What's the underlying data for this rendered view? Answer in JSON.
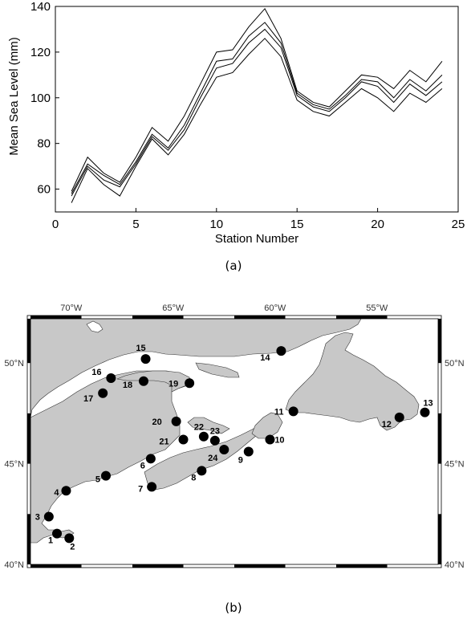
{
  "panels": {
    "a": "(a)",
    "b": "(b)"
  },
  "chart_data": {
    "type": "line",
    "xlabel": "Station Number",
    "ylabel": "Mean Sea Level (mm)",
    "xlim": [
      0,
      25
    ],
    "ylim": [
      50,
      140
    ],
    "xticks": [
      0,
      5,
      10,
      15,
      20,
      25
    ],
    "yticks": [
      60,
      80,
      100,
      120,
      140
    ],
    "grid": false,
    "x": [
      1,
      2,
      3,
      4,
      5,
      6,
      7,
      8,
      9,
      10,
      11,
      12,
      13,
      14,
      15,
      16,
      17,
      18,
      19,
      20,
      21,
      22,
      23,
      24
    ],
    "series": [
      {
        "values": [
          59,
          74,
          67,
          63,
          74,
          87,
          81,
          92,
          106,
          120,
          121,
          131,
          139,
          126,
          103,
          98,
          96,
          103,
          110,
          109,
          104,
          112,
          107,
          116
        ]
      },
      {
        "values": [
          58,
          71,
          66,
          62,
          72,
          84,
          78,
          88,
          102,
          116,
          117,
          127,
          133,
          124,
          102,
          97,
          95,
          101,
          108,
          107,
          100,
          108,
          103,
          110
        ]
      },
      {
        "values": [
          57,
          70,
          64,
          61,
          71,
          83,
          77,
          86,
          100,
          113,
          115,
          124,
          130,
          122,
          101,
          96,
          94,
          100,
          107,
          105,
          98,
          106,
          101,
          107
        ]
      },
      {
        "values": [
          54,
          69,
          62,
          57,
          70,
          82,
          75,
          84,
          97,
          109,
          111,
          119,
          126,
          118,
          99,
          94,
          92,
          98,
          104,
          100,
          94,
          102,
          98,
          104
        ]
      }
    ]
  },
  "map": {
    "lon_labels": [
      "70°W",
      "65°W",
      "60°W",
      "55°W"
    ],
    "lat_labels": [
      "50°N",
      "45°N",
      "40°N"
    ],
    "stations": [
      {
        "label": "1",
        "lon": -70.7,
        "lat": 41.53
      },
      {
        "label": "2",
        "lon": -70.1,
        "lat": 41.3
      },
      {
        "label": "3",
        "lon": -71.1,
        "lat": 42.37
      },
      {
        "label": "4",
        "lon": -70.25,
        "lat": 43.66
      },
      {
        "label": "5",
        "lon": -68.3,
        "lat": 44.4
      },
      {
        "label": "6",
        "lon": -66.1,
        "lat": 45.25
      },
      {
        "label": "7",
        "lon": -66.05,
        "lat": 43.85
      },
      {
        "label": "8",
        "lon": -63.6,
        "lat": 44.65
      },
      {
        "label": "9",
        "lon": -61.3,
        "lat": 45.6
      },
      {
        "label": "10",
        "lon": -60.25,
        "lat": 46.2
      },
      {
        "label": "11",
        "lon": -59.1,
        "lat": 47.6
      },
      {
        "label": "12",
        "lon": -53.9,
        "lat": 47.3
      },
      {
        "label": "13",
        "lon": -52.65,
        "lat": 47.55
      },
      {
        "label": "14",
        "lon": -59.7,
        "lat": 50.6
      },
      {
        "label": "15",
        "lon": -66.35,
        "lat": 50.2
      },
      {
        "label": "16",
        "lon": -68.05,
        "lat": 49.25
      },
      {
        "label": "17",
        "lon": -68.45,
        "lat": 48.5
      },
      {
        "label": "18",
        "lon": -66.45,
        "lat": 49.1
      },
      {
        "label": "19",
        "lon": -64.2,
        "lat": 49.0
      },
      {
        "label": "20",
        "lon": -64.85,
        "lat": 47.1
      },
      {
        "label": "21",
        "lon": -64.5,
        "lat": 46.2
      },
      {
        "label": "22",
        "lon": -63.5,
        "lat": 46.35
      },
      {
        "label": "23",
        "lon": -62.95,
        "lat": 46.15
      },
      {
        "label": "24",
        "lon": -62.5,
        "lat": 45.7
      }
    ]
  },
  "colors": {
    "land": "#c8c8c8",
    "water": "#ffffff",
    "line": "#000000"
  }
}
